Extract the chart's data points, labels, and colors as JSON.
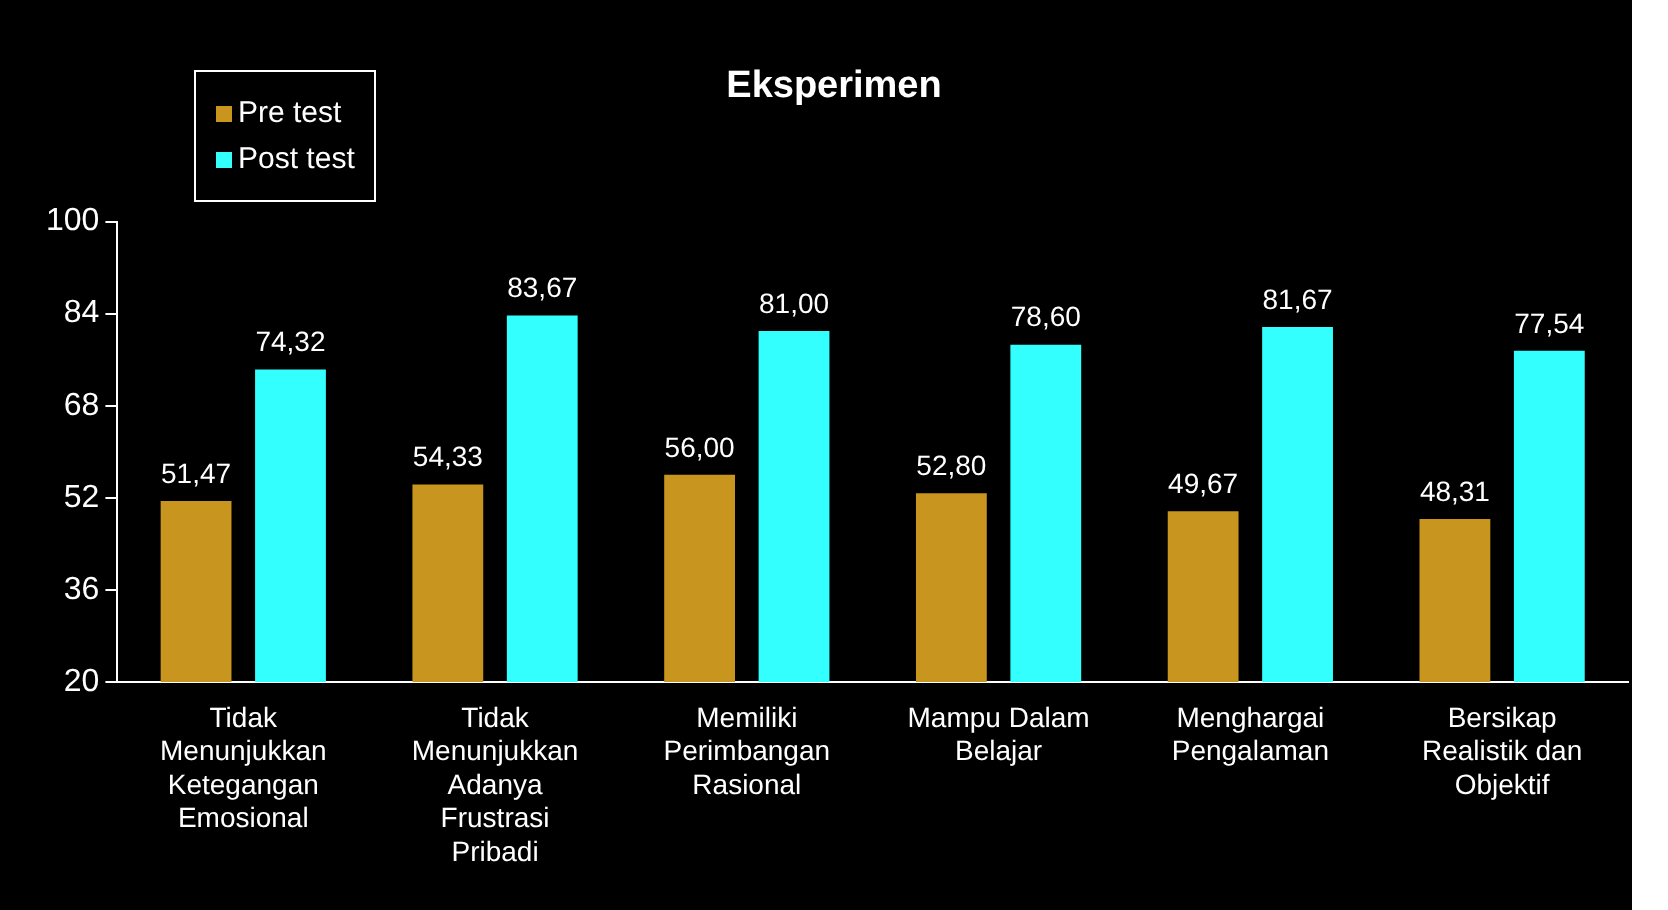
{
  "chart_data": {
    "type": "bar",
    "title": "Eksperimen",
    "categories": [
      "Tidak Menunjukkan Ketegangan Emosional",
      "Tidak Menunjukkan Adanya Frustrasi Pribadi",
      "Memiliki Perimbangan Rasional",
      "Mampu Dalam Belajar",
      "Menghargai Pengalaman",
      "Bersikap Realistik dan Objektif"
    ],
    "series": [
      {
        "name": "Pre test",
        "color": "#c8961e",
        "values": [
          51.47,
          54.33,
          56.0,
          52.8,
          49.67,
          48.31
        ],
        "value_labels": [
          "51,47",
          "54,33",
          "56,00",
          "52,80",
          "49,67",
          "48,31"
        ]
      },
      {
        "name": "Post test",
        "color": "#33ffff",
        "values": [
          74.32,
          83.67,
          81.0,
          78.6,
          81.67,
          77.54
        ],
        "value_labels": [
          "74,32",
          "83,67",
          "81,00",
          "78,60",
          "81,67",
          "77,54"
        ]
      }
    ],
    "ylim": [
      20,
      100
    ],
    "yticks": [
      20,
      36,
      52,
      68,
      84,
      100
    ],
    "grid": false,
    "legend": "top left"
  }
}
